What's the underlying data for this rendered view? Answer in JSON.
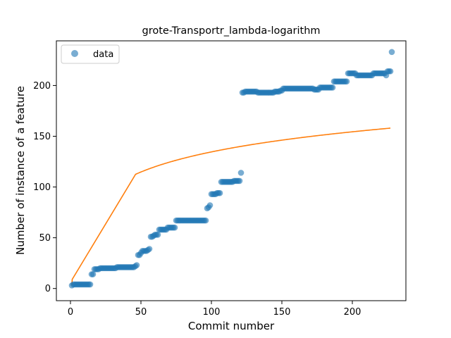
{
  "chart_data": {
    "type": "scatter",
    "title": "grote-Transportr_lambda-logarithm",
    "xlabel": "Commit number",
    "ylabel": "Number of instance of a feature",
    "xlim": [
      -10,
      238
    ],
    "ylim": [
      -12,
      244
    ],
    "xticks": [
      0,
      50,
      100,
      150,
      200
    ],
    "yticks": [
      0,
      50,
      100,
      150,
      200
    ],
    "grid": false,
    "legend": {
      "placement": "top-left",
      "entries": [
        "data"
      ]
    },
    "colors": {
      "data": "#1f77b4",
      "fit": "#ff7f0e"
    },
    "series": [
      {
        "name": "data",
        "kind": "scatter",
        "points": [
          [
            1,
            3
          ],
          [
            2,
            4
          ],
          [
            3,
            4
          ],
          [
            4,
            4
          ],
          [
            5,
            4
          ],
          [
            6,
            4
          ],
          [
            7,
            4
          ],
          [
            8,
            4
          ],
          [
            9,
            4
          ],
          [
            10,
            4
          ],
          [
            11,
            4
          ],
          [
            12,
            4
          ],
          [
            13,
            4
          ],
          [
            14,
            4
          ],
          [
            15,
            14
          ],
          [
            16,
            14
          ],
          [
            17,
            19
          ],
          [
            18,
            19
          ],
          [
            19,
            19
          ],
          [
            20,
            19
          ],
          [
            21,
            20
          ],
          [
            22,
            20
          ],
          [
            23,
            20
          ],
          [
            24,
            20
          ],
          [
            25,
            20
          ],
          [
            26,
            20
          ],
          [
            27,
            20
          ],
          [
            28,
            20
          ],
          [
            29,
            20
          ],
          [
            30,
            20
          ],
          [
            31,
            20
          ],
          [
            32,
            20
          ],
          [
            33,
            21
          ],
          [
            34,
            21
          ],
          [
            35,
            21
          ],
          [
            36,
            21
          ],
          [
            37,
            21
          ],
          [
            38,
            21
          ],
          [
            39,
            21
          ],
          [
            40,
            21
          ],
          [
            41,
            21
          ],
          [
            42,
            21
          ],
          [
            43,
            21
          ],
          [
            44,
            21
          ],
          [
            45,
            21
          ],
          [
            46,
            22
          ],
          [
            47,
            23
          ],
          [
            48,
            33
          ],
          [
            49,
            33
          ],
          [
            50,
            35
          ],
          [
            51,
            37
          ],
          [
            52,
            37
          ],
          [
            53,
            37
          ],
          [
            54,
            37
          ],
          [
            55,
            38
          ],
          [
            56,
            39
          ],
          [
            57,
            51
          ],
          [
            58,
            51
          ],
          [
            59,
            52
          ],
          [
            60,
            53
          ],
          [
            61,
            53
          ],
          [
            62,
            53
          ],
          [
            63,
            58
          ],
          [
            64,
            58
          ],
          [
            65,
            58
          ],
          [
            66,
            58
          ],
          [
            67,
            58
          ],
          [
            68,
            58
          ],
          [
            69,
            60
          ],
          [
            70,
            60
          ],
          [
            71,
            60
          ],
          [
            72,
            60
          ],
          [
            73,
            60
          ],
          [
            74,
            60
          ],
          [
            75,
            67
          ],
          [
            76,
            67
          ],
          [
            77,
            67
          ],
          [
            78,
            67
          ],
          [
            79,
            67
          ],
          [
            80,
            67
          ],
          [
            81,
            67
          ],
          [
            82,
            67
          ],
          [
            83,
            67
          ],
          [
            84,
            67
          ],
          [
            85,
            67
          ],
          [
            86,
            67
          ],
          [
            87,
            67
          ],
          [
            88,
            67
          ],
          [
            89,
            67
          ],
          [
            90,
            67
          ],
          [
            91,
            67
          ],
          [
            92,
            67
          ],
          [
            93,
            67
          ],
          [
            94,
            67
          ],
          [
            95,
            67
          ],
          [
            96,
            67
          ],
          [
            97,
            79
          ],
          [
            98,
            80
          ],
          [
            99,
            82
          ],
          [
            100,
            93
          ],
          [
            101,
            93
          ],
          [
            102,
            93
          ],
          [
            103,
            93
          ],
          [
            104,
            94
          ],
          [
            105,
            94
          ],
          [
            106,
            94
          ],
          [
            107,
            105
          ],
          [
            108,
            105
          ],
          [
            109,
            105
          ],
          [
            110,
            105
          ],
          [
            111,
            105
          ],
          [
            112,
            105
          ],
          [
            113,
            105
          ],
          [
            114,
            105
          ],
          [
            115,
            105
          ],
          [
            116,
            106
          ],
          [
            117,
            106
          ],
          [
            118,
            106
          ],
          [
            119,
            106
          ],
          [
            120,
            106
          ],
          [
            121,
            114
          ],
          [
            122,
            193
          ],
          [
            123,
            193
          ],
          [
            124,
            194
          ],
          [
            125,
            194
          ],
          [
            126,
            194
          ],
          [
            127,
            194
          ],
          [
            128,
            194
          ],
          [
            129,
            194
          ],
          [
            130,
            194
          ],
          [
            131,
            194
          ],
          [
            132,
            194
          ],
          [
            133,
            193
          ],
          [
            134,
            193
          ],
          [
            135,
            193
          ],
          [
            136,
            193
          ],
          [
            137,
            193
          ],
          [
            138,
            193
          ],
          [
            139,
            193
          ],
          [
            140,
            193
          ],
          [
            141,
            193
          ],
          [
            142,
            193
          ],
          [
            143,
            193
          ],
          [
            144,
            193
          ],
          [
            145,
            194
          ],
          [
            146,
            194
          ],
          [
            147,
            194
          ],
          [
            148,
            194
          ],
          [
            149,
            195
          ],
          [
            150,
            195
          ],
          [
            151,
            197
          ],
          [
            152,
            197
          ],
          [
            153,
            197
          ],
          [
            154,
            197
          ],
          [
            155,
            197
          ],
          [
            156,
            197
          ],
          [
            157,
            197
          ],
          [
            158,
            197
          ],
          [
            159,
            197
          ],
          [
            160,
            197
          ],
          [
            161,
            197
          ],
          [
            162,
            197
          ],
          [
            163,
            197
          ],
          [
            164,
            197
          ],
          [
            165,
            197
          ],
          [
            166,
            197
          ],
          [
            167,
            197
          ],
          [
            168,
            197
          ],
          [
            169,
            197
          ],
          [
            170,
            197
          ],
          [
            171,
            197
          ],
          [
            172,
            197
          ],
          [
            173,
            196
          ],
          [
            174,
            196
          ],
          [
            175,
            196
          ],
          [
            176,
            196
          ],
          [
            177,
            198
          ],
          [
            178,
            198
          ],
          [
            179,
            198
          ],
          [
            180,
            198
          ],
          [
            181,
            198
          ],
          [
            182,
            198
          ],
          [
            183,
            198
          ],
          [
            184,
            198
          ],
          [
            185,
            198
          ],
          [
            186,
            198
          ],
          [
            187,
            204
          ],
          [
            188,
            204
          ],
          [
            189,
            204
          ],
          [
            190,
            204
          ],
          [
            191,
            204
          ],
          [
            192,
            204
          ],
          [
            193,
            204
          ],
          [
            194,
            204
          ],
          [
            195,
            204
          ],
          [
            196,
            204
          ],
          [
            197,
            212
          ],
          [
            198,
            212
          ],
          [
            199,
            212
          ],
          [
            200,
            212
          ],
          [
            201,
            212
          ],
          [
            202,
            212
          ],
          [
            203,
            210
          ],
          [
            204,
            210
          ],
          [
            205,
            210
          ],
          [
            206,
            210
          ],
          [
            207,
            210
          ],
          [
            208,
            210
          ],
          [
            209,
            210
          ],
          [
            210,
            210
          ],
          [
            211,
            210
          ],
          [
            212,
            210
          ],
          [
            213,
            210
          ],
          [
            214,
            210
          ],
          [
            215,
            212
          ],
          [
            216,
            212
          ],
          [
            217,
            212
          ],
          [
            218,
            212
          ],
          [
            219,
            212
          ],
          [
            220,
            212
          ],
          [
            221,
            212
          ],
          [
            222,
            212
          ],
          [
            223,
            212
          ],
          [
            224,
            210
          ],
          [
            225,
            214
          ],
          [
            226,
            214
          ],
          [
            227,
            214
          ],
          [
            228,
            233
          ]
        ]
      },
      {
        "kind": "line",
        "model": "logarithmic",
        "x_range": [
          1,
          227
        ],
        "y_at_start": 3,
        "y_at_end": 158
      }
    ]
  }
}
